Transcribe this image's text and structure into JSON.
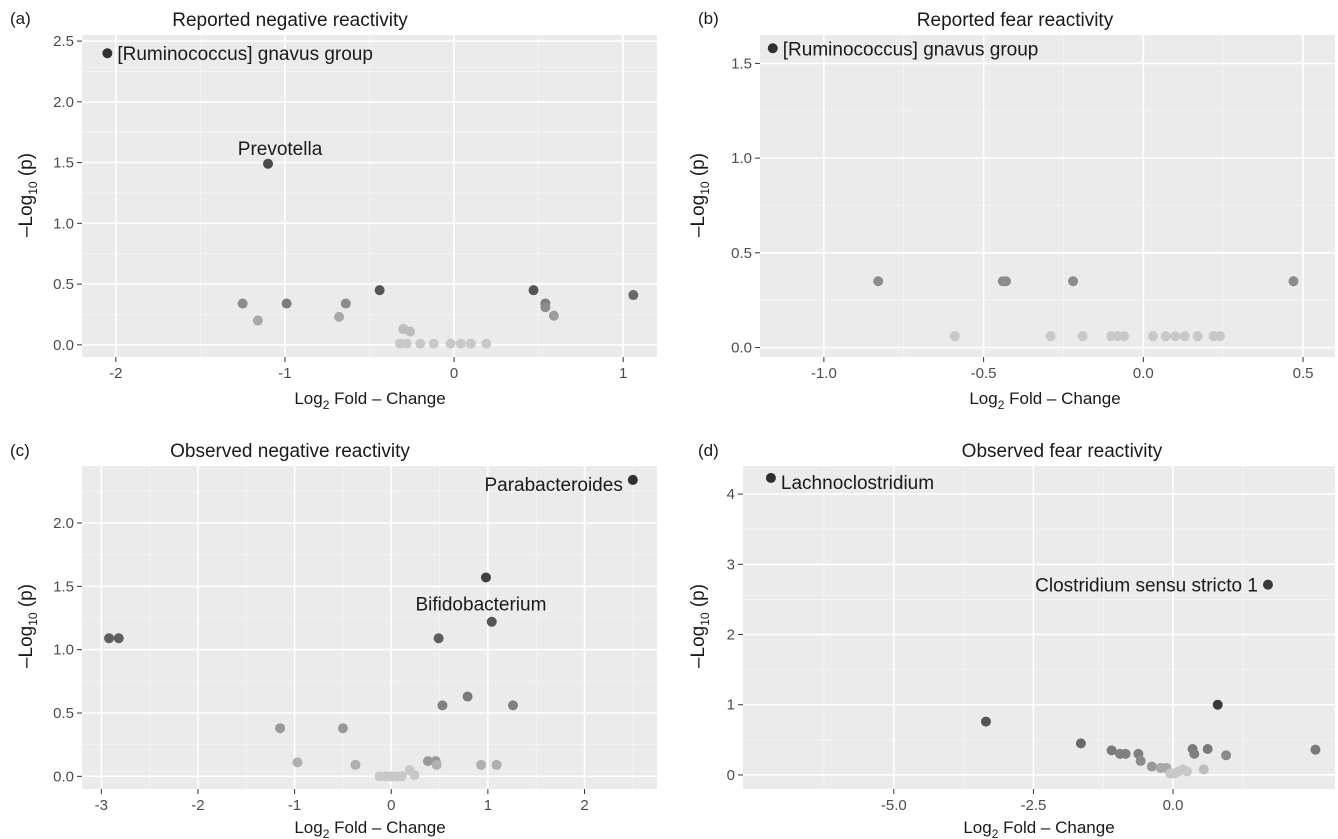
{
  "chart_data": [
    {
      "type": "scatter",
      "panel_label": "(a)",
      "title": "Reported negative reactivity",
      "xlabel": {
        "pre": "Log",
        "sub": "2",
        "post": " Fold – Change"
      },
      "ylabel": {
        "pre": "–Log",
        "sub": "10",
        "post": " (p)"
      },
      "xlim": [
        -2.2,
        1.2
      ],
      "ylim": [
        -0.1,
        2.55
      ],
      "xticks": [
        -2,
        -1,
        0,
        1
      ],
      "xtick_labels": [
        "-2",
        "-1",
        "0",
        "1"
      ],
      "yticks": [
        0,
        0.5,
        1,
        1.5,
        2,
        2.5
      ],
      "ytick_labels": [
        "0.0",
        "0.5",
        "1.0",
        "1.5",
        "2.0",
        "2.5"
      ],
      "grid": true,
      "points": [
        {
          "x": -2.05,
          "y": 2.4,
          "shade": "#303030"
        },
        {
          "x": -1.1,
          "y": 1.49,
          "shade": "#4a4a4a"
        },
        {
          "x": -1.25,
          "y": 0.34,
          "shade": "#8c8c8c"
        },
        {
          "x": -1.16,
          "y": 0.2,
          "shade": "#a8a8a8"
        },
        {
          "x": -0.99,
          "y": 0.34,
          "shade": "#7c7c7c"
        },
        {
          "x": -0.68,
          "y": 0.23,
          "shade": "#a8a8a8"
        },
        {
          "x": -0.64,
          "y": 0.34,
          "shade": "#8c8c8c"
        },
        {
          "x": -0.44,
          "y": 0.45,
          "shade": "#555555"
        },
        {
          "x": -0.3,
          "y": 0.13,
          "shade": "#bcbcbc"
        },
        {
          "x": -0.26,
          "y": 0.11,
          "shade": "#bcbcbc"
        },
        {
          "x": -0.32,
          "y": 0.01,
          "shade": "#c8c8c8"
        },
        {
          "x": -0.28,
          "y": 0.01,
          "shade": "#c8c8c8"
        },
        {
          "x": -0.2,
          "y": 0.01,
          "shade": "#c8c8c8"
        },
        {
          "x": -0.12,
          "y": 0.01,
          "shade": "#c8c8c8"
        },
        {
          "x": -0.02,
          "y": 0.01,
          "shade": "#c8c8c8"
        },
        {
          "x": 0.04,
          "y": 0.01,
          "shade": "#c8c8c8"
        },
        {
          "x": 0.1,
          "y": 0.01,
          "shade": "#c8c8c8"
        },
        {
          "x": 0.19,
          "y": 0.01,
          "shade": "#c8c8c8"
        },
        {
          "x": 0.47,
          "y": 0.45,
          "shade": "#555555"
        },
        {
          "x": 0.54,
          "y": 0.34,
          "shade": "#7c7c7c"
        },
        {
          "x": 0.54,
          "y": 0.31,
          "shade": "#8c8c8c"
        },
        {
          "x": 0.59,
          "y": 0.24,
          "shade": "#9c9c9c"
        },
        {
          "x": 1.06,
          "y": 0.41,
          "shade": "#6a6a6a"
        }
      ],
      "annotations": [
        {
          "text": "[Ruminococcus] gnavus group",
          "x": -2.05,
          "y": 2.4,
          "anchor": "start",
          "dx": 10,
          "dy": 0
        },
        {
          "text": "Prevotella",
          "x": -1.1,
          "y": 1.49,
          "anchor": "middle",
          "dx": 12,
          "dy": -16
        }
      ]
    },
    {
      "type": "scatter",
      "panel_label": "(b)",
      "title": "Reported fear reactivity",
      "xlabel": {
        "pre": "Log",
        "sub": "2",
        "post": " Fold – Change"
      },
      "ylabel": {
        "pre": "–Log",
        "sub": "10",
        "post": " (p)"
      },
      "xlim": [
        -1.2,
        0.6
      ],
      "ylim": [
        -0.05,
        1.65
      ],
      "xticks": [
        -1.0,
        -0.5,
        0.0,
        0.5
      ],
      "xtick_labels": [
        "-1.0",
        "-0.5",
        "0.0",
        "0.5"
      ],
      "yticks": [
        0,
        0.5,
        1,
        1.5
      ],
      "ytick_labels": [
        "0.0",
        "0.5",
        "1.0",
        "1.5"
      ],
      "grid": true,
      "points": [
        {
          "x": -1.16,
          "y": 1.58,
          "shade": "#303030"
        },
        {
          "x": -0.83,
          "y": 0.35,
          "shade": "#8c8c8c"
        },
        {
          "x": -0.59,
          "y": 0.06,
          "shade": "#c8c8c8"
        },
        {
          "x": -0.44,
          "y": 0.35,
          "shade": "#8c8c8c"
        },
        {
          "x": -0.43,
          "y": 0.35,
          "shade": "#8c8c8c"
        },
        {
          "x": -0.22,
          "y": 0.35,
          "shade": "#8c8c8c"
        },
        {
          "x": -0.29,
          "y": 0.06,
          "shade": "#c8c8c8"
        },
        {
          "x": -0.19,
          "y": 0.06,
          "shade": "#c8c8c8"
        },
        {
          "x": -0.1,
          "y": 0.06,
          "shade": "#c8c8c8"
        },
        {
          "x": -0.08,
          "y": 0.06,
          "shade": "#c8c8c8"
        },
        {
          "x": -0.06,
          "y": 0.06,
          "shade": "#c8c8c8"
        },
        {
          "x": 0.03,
          "y": 0.06,
          "shade": "#c8c8c8"
        },
        {
          "x": 0.07,
          "y": 0.06,
          "shade": "#c8c8c8"
        },
        {
          "x": 0.1,
          "y": 0.06,
          "shade": "#c8c8c8"
        },
        {
          "x": 0.13,
          "y": 0.06,
          "shade": "#c8c8c8"
        },
        {
          "x": 0.17,
          "y": 0.06,
          "shade": "#c8c8c8"
        },
        {
          "x": 0.22,
          "y": 0.06,
          "shade": "#c8c8c8"
        },
        {
          "x": 0.24,
          "y": 0.06,
          "shade": "#c8c8c8"
        },
        {
          "x": 0.47,
          "y": 0.35,
          "shade": "#8c8c8c"
        }
      ],
      "annotations": [
        {
          "text": "[Ruminococcus] gnavus group",
          "x": -1.16,
          "y": 1.58,
          "anchor": "start",
          "dx": 10,
          "dy": 0
        }
      ]
    },
    {
      "type": "scatter",
      "panel_label": "(c)",
      "title": "Observed negative reactivity",
      "xlabel": {
        "pre": "Log",
        "sub": "2",
        "post": " Fold – Change"
      },
      "ylabel": {
        "pre": "–Log",
        "sub": "10",
        "post": " (p)"
      },
      "xlim": [
        -3.2,
        2.75
      ],
      "ylim": [
        -0.1,
        2.45
      ],
      "xticks": [
        -3,
        -2,
        -1,
        0,
        1,
        2
      ],
      "xtick_labels": [
        "-3",
        "-2",
        "-1",
        "0",
        "1",
        "2"
      ],
      "yticks": [
        0,
        0.5,
        1,
        1.5,
        2
      ],
      "ytick_labels": [
        "0.0",
        "0.5",
        "1.0",
        "1.5",
        "2.0"
      ],
      "grid": true,
      "points": [
        {
          "x": 2.5,
          "y": 2.34,
          "shade": "#303030"
        },
        {
          "x": 0.98,
          "y": 1.57,
          "shade": "#404040"
        },
        {
          "x": 1.04,
          "y": 1.22,
          "shade": "#555555"
        },
        {
          "x": 0.49,
          "y": 1.09,
          "shade": "#5e5e5e"
        },
        {
          "x": -2.92,
          "y": 1.09,
          "shade": "#5e5e5e"
        },
        {
          "x": -2.82,
          "y": 1.09,
          "shade": "#5e5e5e"
        },
        {
          "x": 0.79,
          "y": 0.63,
          "shade": "#7a7a7a"
        },
        {
          "x": 0.53,
          "y": 0.56,
          "shade": "#808080"
        },
        {
          "x": 1.26,
          "y": 0.56,
          "shade": "#808080"
        },
        {
          "x": -1.15,
          "y": 0.38,
          "shade": "#999999"
        },
        {
          "x": -0.5,
          "y": 0.38,
          "shade": "#999999"
        },
        {
          "x": -0.97,
          "y": 0.11,
          "shade": "#b0b0b0"
        },
        {
          "x": -0.37,
          "y": 0.09,
          "shade": "#b0b0b0"
        },
        {
          "x": 0.38,
          "y": 0.12,
          "shade": "#999999"
        },
        {
          "x": 0.46,
          "y": 0.12,
          "shade": "#999999"
        },
        {
          "x": 0.47,
          "y": 0.09,
          "shade": "#b0b0b0"
        },
        {
          "x": 0.93,
          "y": 0.09,
          "shade": "#b0b0b0"
        },
        {
          "x": 1.09,
          "y": 0.09,
          "shade": "#b0b0b0"
        },
        {
          "x": -0.12,
          "y": 0.0,
          "shade": "#c8c8c8"
        },
        {
          "x": -0.06,
          "y": 0.0,
          "shade": "#c8c8c8"
        },
        {
          "x": 0.0,
          "y": 0.0,
          "shade": "#c8c8c8"
        },
        {
          "x": 0.06,
          "y": 0.0,
          "shade": "#c8c8c8"
        },
        {
          "x": 0.11,
          "y": 0.0,
          "shade": "#c8c8c8"
        },
        {
          "x": 0.19,
          "y": 0.05,
          "shade": "#c8c8c8"
        },
        {
          "x": 0.24,
          "y": 0.01,
          "shade": "#c8c8c8"
        }
      ],
      "annotations": [
        {
          "text": "Parabacteroides",
          "x": 2.5,
          "y": 2.34,
          "anchor": "end",
          "dx": -10,
          "dy": 4
        },
        {
          "text": "Bifidobacterium",
          "x": 0.98,
          "y": 1.57,
          "anchor": "middle",
          "dx": -5,
          "dy": 26
        }
      ]
    },
    {
      "type": "scatter",
      "panel_label": "(d)",
      "title": "Observed fear reactivity",
      "xlabel": {
        "pre": "Log",
        "sub": "2",
        "post": " Fold – Change"
      },
      "ylabel": {
        "pre": "–Log",
        "sub": "10",
        "post": " (p)"
      },
      "xlim": [
        -7.7,
        2.9
      ],
      "ylim": [
        -0.2,
        4.4
      ],
      "xticks": [
        -5.0,
        -2.5,
        0.0
      ],
      "xtick_labels": [
        "-5.0",
        "-2.5",
        "0.0"
      ],
      "yticks": [
        0,
        1,
        2,
        3,
        4
      ],
      "ytick_labels": [
        "0",
        "1",
        "2",
        "3",
        "4"
      ],
      "grid": true,
      "points": [
        {
          "x": -7.2,
          "y": 4.23,
          "shade": "#303030"
        },
        {
          "x": 1.7,
          "y": 2.71,
          "shade": "#3a3a3a"
        },
        {
          "x": 0.8,
          "y": 1.0,
          "shade": "#3a3a3a"
        },
        {
          "x": -3.35,
          "y": 0.76,
          "shade": "#555555"
        },
        {
          "x": -1.65,
          "y": 0.45,
          "shade": "#6a6a6a"
        },
        {
          "x": -1.1,
          "y": 0.35,
          "shade": "#7a7a7a"
        },
        {
          "x": -0.95,
          "y": 0.3,
          "shade": "#808080"
        },
        {
          "x": -0.85,
          "y": 0.3,
          "shade": "#808080"
        },
        {
          "x": -0.62,
          "y": 0.3,
          "shade": "#808080"
        },
        {
          "x": -0.58,
          "y": 0.2,
          "shade": "#8c8c8c"
        },
        {
          "x": -0.38,
          "y": 0.12,
          "shade": "#999999"
        },
        {
          "x": -0.22,
          "y": 0.1,
          "shade": "#a8a8a8"
        },
        {
          "x": -0.12,
          "y": 0.1,
          "shade": "#a8a8a8"
        },
        {
          "x": -0.05,
          "y": 0.02,
          "shade": "#c8c8c8"
        },
        {
          "x": 0.02,
          "y": 0.02,
          "shade": "#c8c8c8"
        },
        {
          "x": 0.1,
          "y": 0.05,
          "shade": "#c8c8c8"
        },
        {
          "x": 0.18,
          "y": 0.08,
          "shade": "#c8c8c8"
        },
        {
          "x": 0.25,
          "y": 0.05,
          "shade": "#c8c8c8"
        },
        {
          "x": 0.35,
          "y": 0.37,
          "shade": "#7a7a7a"
        },
        {
          "x": 0.38,
          "y": 0.3,
          "shade": "#808080"
        },
        {
          "x": 0.55,
          "y": 0.08,
          "shade": "#bcbcbc"
        },
        {
          "x": 0.62,
          "y": 0.37,
          "shade": "#7a7a7a"
        },
        {
          "x": 0.95,
          "y": 0.28,
          "shade": "#8c8c8c"
        },
        {
          "x": 2.55,
          "y": 0.36,
          "shade": "#7a7a7a"
        }
      ],
      "annotations": [
        {
          "text": "Lachnoclostridium",
          "x": -7.2,
          "y": 4.23,
          "anchor": "start",
          "dx": 10,
          "dy": 4
        },
        {
          "text": "Clostridium sensu stricto 1",
          "x": 1.7,
          "y": 2.71,
          "anchor": "end",
          "dx": -10,
          "dy": 0
        }
      ]
    }
  ],
  "colors": {
    "panel_background": "#ebebeb",
    "grid_major": "#ffffff",
    "text": "#1a1a1a",
    "tick_text": "#4d4d4d"
  }
}
